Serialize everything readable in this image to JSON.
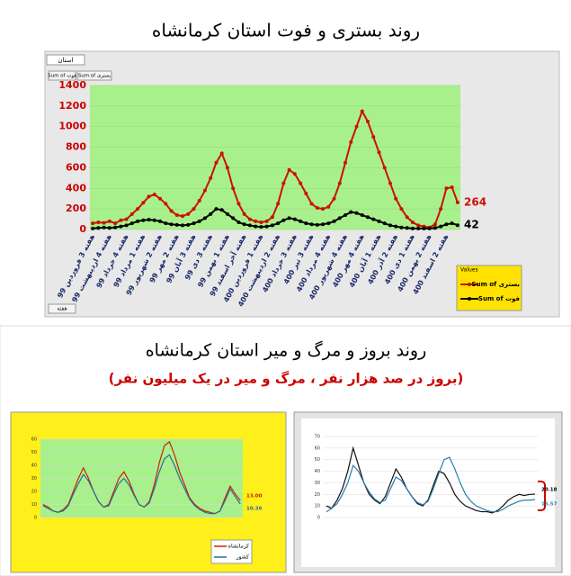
{
  "chart_data": [
    {
      "type": "line",
      "title": "روند بستری و فوت استان کرمانشاه",
      "categories": [
        "هفته 3 فروردین 99",
        null,
        null,
        "هفته 4 اردیبهشت 99",
        null,
        null,
        "هفته 4 خرداد 99",
        null,
        null,
        "هفته 1 مرداد 99",
        null,
        null,
        "هفته 2 شهریور 99",
        null,
        null,
        "هفته 2 مهر 99",
        null,
        null,
        "هفته 3 آبان 99",
        null,
        null,
        "هفته 3 دی 99",
        null,
        null,
        "هفته 1 بهمن 99",
        null,
        null,
        "هفته آخر اسفند 99",
        null,
        null,
        "هفته 1 فروردین 400",
        null,
        null,
        "هفته 2 اردیبهشت 400",
        null,
        null,
        "هفته 3 خرداد 400",
        null,
        null,
        "هفته 3 تیر 400",
        null,
        null,
        "هفته 4 مرداد 400",
        null,
        null,
        "هفته 4 شهریور 400",
        null,
        null,
        "هفته 4 مهر 400",
        null,
        null,
        "هفته 1 آبان 400",
        null,
        null,
        "هفته 2 آذر 400",
        null,
        null,
        "هفته 1 دی 400",
        null,
        null,
        "هفته 2 بهمن 400",
        null,
        null,
        "هفته 2 اسفند 400",
        null,
        null
      ],
      "series": [
        {
          "name": "Sum of بستری",
          "color": "#cc1100",
          "values": [
            60,
            70,
            65,
            80,
            60,
            90,
            100,
            150,
            200,
            260,
            320,
            340,
            300,
            250,
            180,
            140,
            130,
            150,
            200,
            280,
            380,
            500,
            650,
            740,
            600,
            400,
            250,
            150,
            100,
            80,
            70,
            80,
            120,
            250,
            450,
            580,
            540,
            450,
            350,
            250,
            210,
            200,
            220,
            300,
            450,
            650,
            850,
            1000,
            1150,
            1050,
            900,
            750,
            600,
            450,
            300,
            200,
            120,
            70,
            40,
            30,
            20,
            50,
            200,
            400,
            410,
            264
          ]
        },
        {
          "name": "Sum of فوت",
          "color": "#000000",
          "values": [
            10,
            15,
            20,
            15,
            20,
            30,
            40,
            60,
            80,
            90,
            95,
            90,
            80,
            60,
            50,
            45,
            40,
            45,
            60,
            80,
            110,
            150,
            200,
            190,
            150,
            110,
            70,
            50,
            40,
            30,
            25,
            30,
            40,
            60,
            90,
            110,
            100,
            80,
            60,
            50,
            45,
            50,
            60,
            80,
            110,
            140,
            170,
            160,
            140,
            120,
            100,
            80,
            60,
            40,
            30,
            20,
            15,
            10,
            10,
            10,
            10,
            15,
            30,
            50,
            60,
            42
          ]
        }
      ],
      "ylim": [
        0,
        1400
      ],
      "yticks": [
        0,
        200,
        400,
        600,
        800,
        1000,
        1200,
        1400
      ],
      "background": "#a8f08c"
    },
    {
      "type": "line",
      "title": "روند بروز و مرگ و میر استان کرمانشاه",
      "subtitle": "(بروز در صد هزار نفر ، مرگ و میر در یک میلیون نفر)",
      "series": [
        {
          "name": "کرمانشاه",
          "color": "#cc2200",
          "values": [
            10,
            8,
            5,
            4,
            6,
            10,
            20,
            30,
            38,
            30,
            20,
            12,
            8,
            10,
            20,
            30,
            35,
            28,
            18,
            10,
            8,
            12,
            25,
            42,
            55,
            58,
            48,
            35,
            25,
            15,
            10,
            7,
            5,
            4,
            3,
            5,
            15,
            24,
            18,
            13
          ],
          "value_labels": [
            null,
            null,
            null,
            null,
            null,
            null,
            null,
            null,
            null,
            null,
            null,
            null,
            null,
            null,
            null,
            null,
            null,
            null,
            null,
            null,
            null,
            null,
            null,
            null,
            null,
            null,
            null,
            null,
            null,
            null,
            null,
            null,
            null,
            null,
            null,
            null,
            null,
            null,
            null,
            "13.00"
          ]
        },
        {
          "name": "کشور",
          "color": "#2a6f9a",
          "values": [
            9,
            7,
            5,
            4,
            5,
            9,
            18,
            26,
            33,
            28,
            20,
            12,
            8,
            9,
            18,
            26,
            30,
            25,
            17,
            10,
            8,
            11,
            22,
            35,
            45,
            48,
            40,
            30,
            22,
            14,
            9,
            6,
            4,
            3,
            3,
            5,
            13,
            22,
            16,
            10.36
          ]
        }
      ],
      "ylim": [
        0,
        60
      ],
      "yticks": [
        0,
        10,
        20,
        30,
        40,
        50,
        60
      ],
      "background": "#a8f08c"
    },
    {
      "type": "line",
      "series": [
        {
          "color": "#111111",
          "values": [
            10,
            8,
            15,
            25,
            40,
            60,
            45,
            30,
            20,
            15,
            12,
            18,
            30,
            42,
            35,
            25,
            18,
            12,
            10,
            15,
            28,
            40,
            38,
            30,
            20,
            14,
            10,
            8,
            6,
            5,
            5,
            4,
            6,
            10,
            15,
            18,
            20,
            19,
            20,
            20.18
          ]
        },
        {
          "color": "#2a7fa8",
          "values": [
            5,
            8,
            12,
            20,
            30,
            45,
            40,
            30,
            22,
            16,
            13,
            15,
            25,
            35,
            32,
            25,
            18,
            13,
            11,
            14,
            25,
            38,
            50,
            52,
            42,
            30,
            20,
            14,
            10,
            8,
            6,
            5,
            5,
            7,
            10,
            12,
            14,
            15,
            15,
            15.57
          ]
        }
      ],
      "ylim": [
        0,
        70
      ],
      "yticks": [
        0,
        10,
        20,
        30,
        40,
        50,
        60,
        70
      ],
      "background": "#ffffff"
    }
  ],
  "ui": {
    "filter": "استان",
    "field_buttons": [
      "Sum of فوت",
      "Sum of بستری"
    ],
    "legend_title": "Values",
    "axis_field": "هفته"
  }
}
